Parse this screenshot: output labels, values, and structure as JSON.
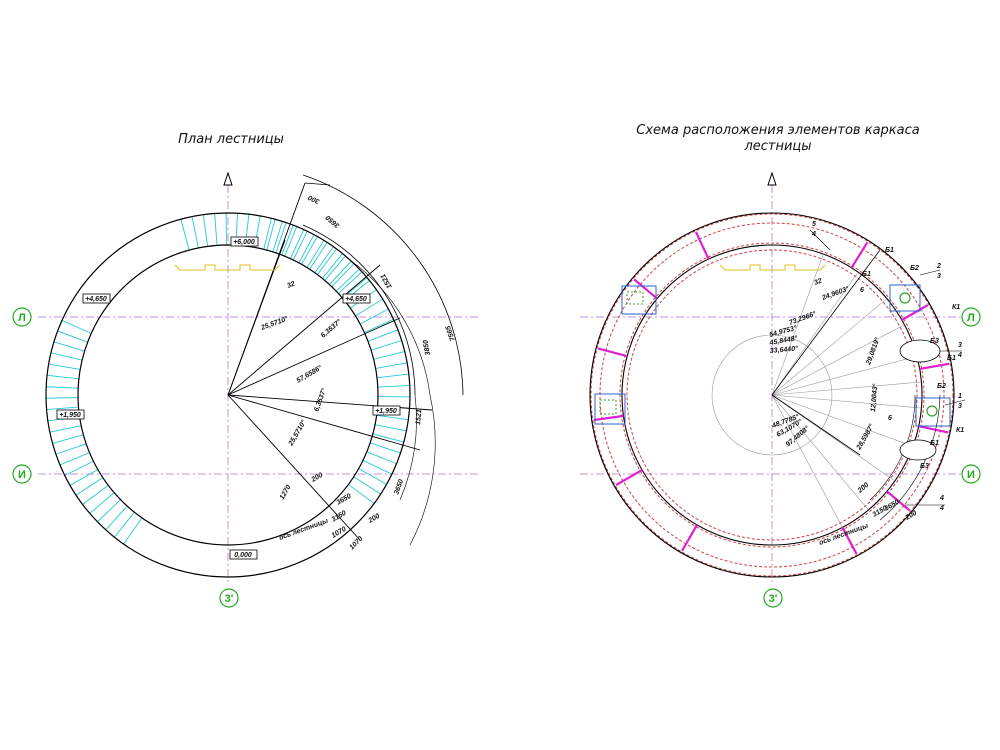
{
  "titles": {
    "left": "План лестницы",
    "right_line1": "Схема расположения элементов каркаса",
    "right_line2": "лестницы"
  },
  "axes": {
    "L": "Л",
    "I": "И",
    "Z": "3'"
  },
  "levels": {
    "l1": "+6,000",
    "l2": "+4,650",
    "l3": "+4,650",
    "l4": "+1,950",
    "l5": "+1,950",
    "l6": "0,000"
  },
  "left_dims": {
    "d1": "32",
    "d2": "25,5710°",
    "d3": "6,3537°",
    "d4": "57,6586°",
    "d5": "6,3537°",
    "d6": "25,5710°",
    "d7": "1270",
    "d8": "200",
    "d9": "3650",
    "d10": "3150",
    "d11": "200",
    "d12": "1070",
    "d13": "1070",
    "d14": "3650",
    "d15": "1521",
    "d16": "3850",
    "d17": "7565",
    "d18": "1521",
    "d19": "3650",
    "d20": "300",
    "d21": "ось лестницы"
  },
  "right_dims": {
    "a1": "24,9603°",
    "a2": "73,2966°",
    "a3": "54,9753°",
    "a4": "45,8448°",
    "a5": "33,6440°",
    "a6": "29,0819°",
    "a7": "12,0043°",
    "a8": "48,7785°",
    "a9": "63,1070°",
    "a10": "97,4808°",
    "a11": "28,5987°",
    "a12": "32",
    "a13": "200",
    "a14": "3650",
    "a15": "3150",
    "a16": "200",
    "a17": "ось лестницы"
  },
  "right_labels": {
    "k1": "К1",
    "k2": "К1",
    "b1": "Б1",
    "b2": "Б2",
    "b3": "Б3",
    "b4": "Б1",
    "b5": "Б1",
    "b6": "Б2",
    "b7": "Б3",
    "b8": "Б1",
    "s1": "5",
    "s2": "4",
    "s3": "2",
    "s4": "3",
    "s5": "3",
    "s6": "4",
    "s7": "1",
    "s8": "3",
    "s9": "4",
    "s10": "4",
    "s11": "6",
    "s12": "6"
  }
}
